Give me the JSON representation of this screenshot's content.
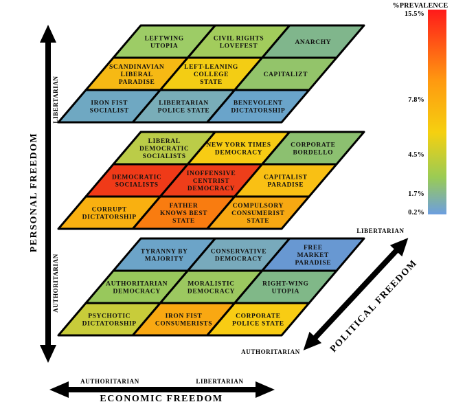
{
  "legend": {
    "title": "%PREVALENCE",
    "ticks": [
      "15.5%",
      "7.8%",
      "4.5%",
      "1.7%",
      "0.2%"
    ]
  },
  "axes": {
    "personal": {
      "label": "PERSONAL FREEDOM",
      "top": "LIBERTARIAN",
      "bottom": "AUTHORITARIAN"
    },
    "economic": {
      "label": "ECONOMIC FREEDOM",
      "left": "AUTHORITARIAN",
      "right": "LIBERTARIAN"
    },
    "political": {
      "label": "POLITICAL FREEDOM",
      "top": "LIBERTARIAN",
      "bottom": "AUTHORITARIAN"
    }
  },
  "layers": [
    {
      "rows": [
        [
          {
            "lines": [
              "LEFTWING",
              "UTOPIA"
            ],
            "color": "#9dcc66"
          },
          {
            "lines": [
              "CIVIL RIGHTS",
              "LOVEFEST"
            ],
            "color": "#a2cc5c"
          },
          {
            "lines": [
              "ANARCHY"
            ],
            "color": "#80b68c"
          }
        ],
        [
          {
            "lines": [
              "SCANDINAVIAN",
              "LIBERAL",
              "PARADISE"
            ],
            "color": "#f6b914"
          },
          {
            "lines": [
              "LEFT-LEANING",
              "COLLEGE",
              "STATE"
            ],
            "color": "#f3cd14"
          },
          {
            "lines": [
              "CAPITALIZT"
            ],
            "color": "#93c46a"
          }
        ],
        [
          {
            "lines": [
              "IRON FIST",
              "SOCIALIST"
            ],
            "color": "#6fa8c2"
          },
          {
            "lines": [
              "LIBERTARIAN",
              "POLICE STATE"
            ],
            "color": "#79adb8"
          },
          {
            "lines": [
              "BENEVOLENT",
              "DICTATORSHIP"
            ],
            "color": "#6aa4ca"
          }
        ]
      ]
    },
    {
      "rows": [
        [
          {
            "lines": [
              "LIBERAL",
              "DEMOCRATIC",
              "SOCIALISTS"
            ],
            "color": "#bbcc48"
          },
          {
            "lines": [
              "NEW YORK TIMES",
              "DEMOCRACY"
            ],
            "color": "#f7cc14"
          },
          {
            "lines": [
              "CORPORATE",
              "BORDELLO"
            ],
            "color": "#8cc070"
          }
        ],
        [
          {
            "lines": [
              "DEMOCRATIC",
              "SOCIALISTS"
            ],
            "color": "#f03a18"
          },
          {
            "lines": [
              "INOFFENSIVE",
              "CENTRIST",
              "DEMOCRACY"
            ],
            "color": "#ee3e1a"
          },
          {
            "lines": [
              "CAPITALIST",
              "PARADISE"
            ],
            "color": "#f9c014"
          }
        ],
        [
          {
            "lines": [
              "CORRUPT",
              "DICTATORSHIP"
            ],
            "color": "#f9b010"
          },
          {
            "lines": [
              "FATHER",
              "KNOWS BEST",
              "STATE"
            ],
            "color": "#f97c10"
          },
          {
            "lines": [
              "COMPULSORY",
              "CONSUMERIST",
              "STATE"
            ],
            "color": "#f7a812"
          }
        ]
      ]
    },
    {
      "rows": [
        [
          {
            "lines": [
              "TYRANNY BY",
              "MAJORITY"
            ],
            "color": "#6ca4c8"
          },
          {
            "lines": [
              "CONSERVATIVE",
              "DEMOCRACY"
            ],
            "color": "#78aabc"
          },
          {
            "lines": [
              "FREE",
              "MARKET",
              "PARADISE"
            ],
            "color": "#6898d2"
          }
        ],
        [
          {
            "lines": [
              "AUTHORITARIAN",
              "DEMOCRACY"
            ],
            "color": "#98c85c"
          },
          {
            "lines": [
              "MORALISTIC",
              "DEMOCRACY"
            ],
            "color": "#9cc860"
          },
          {
            "lines": [
              "RIGHT-WING",
              "UTOPIA"
            ],
            "color": "#80b888"
          }
        ],
        [
          {
            "lines": [
              "PSYCHOTIC",
              "DICTATORSHIP"
            ],
            "color": "#c8cc3a"
          },
          {
            "lines": [
              "IRON FIST",
              "CONSUMERISTS"
            ],
            "color": "#f9a812"
          },
          {
            "lines": [
              "CORPORATE",
              "POLICE STATE"
            ],
            "color": "#f8cc14"
          }
        ]
      ]
    }
  ]
}
